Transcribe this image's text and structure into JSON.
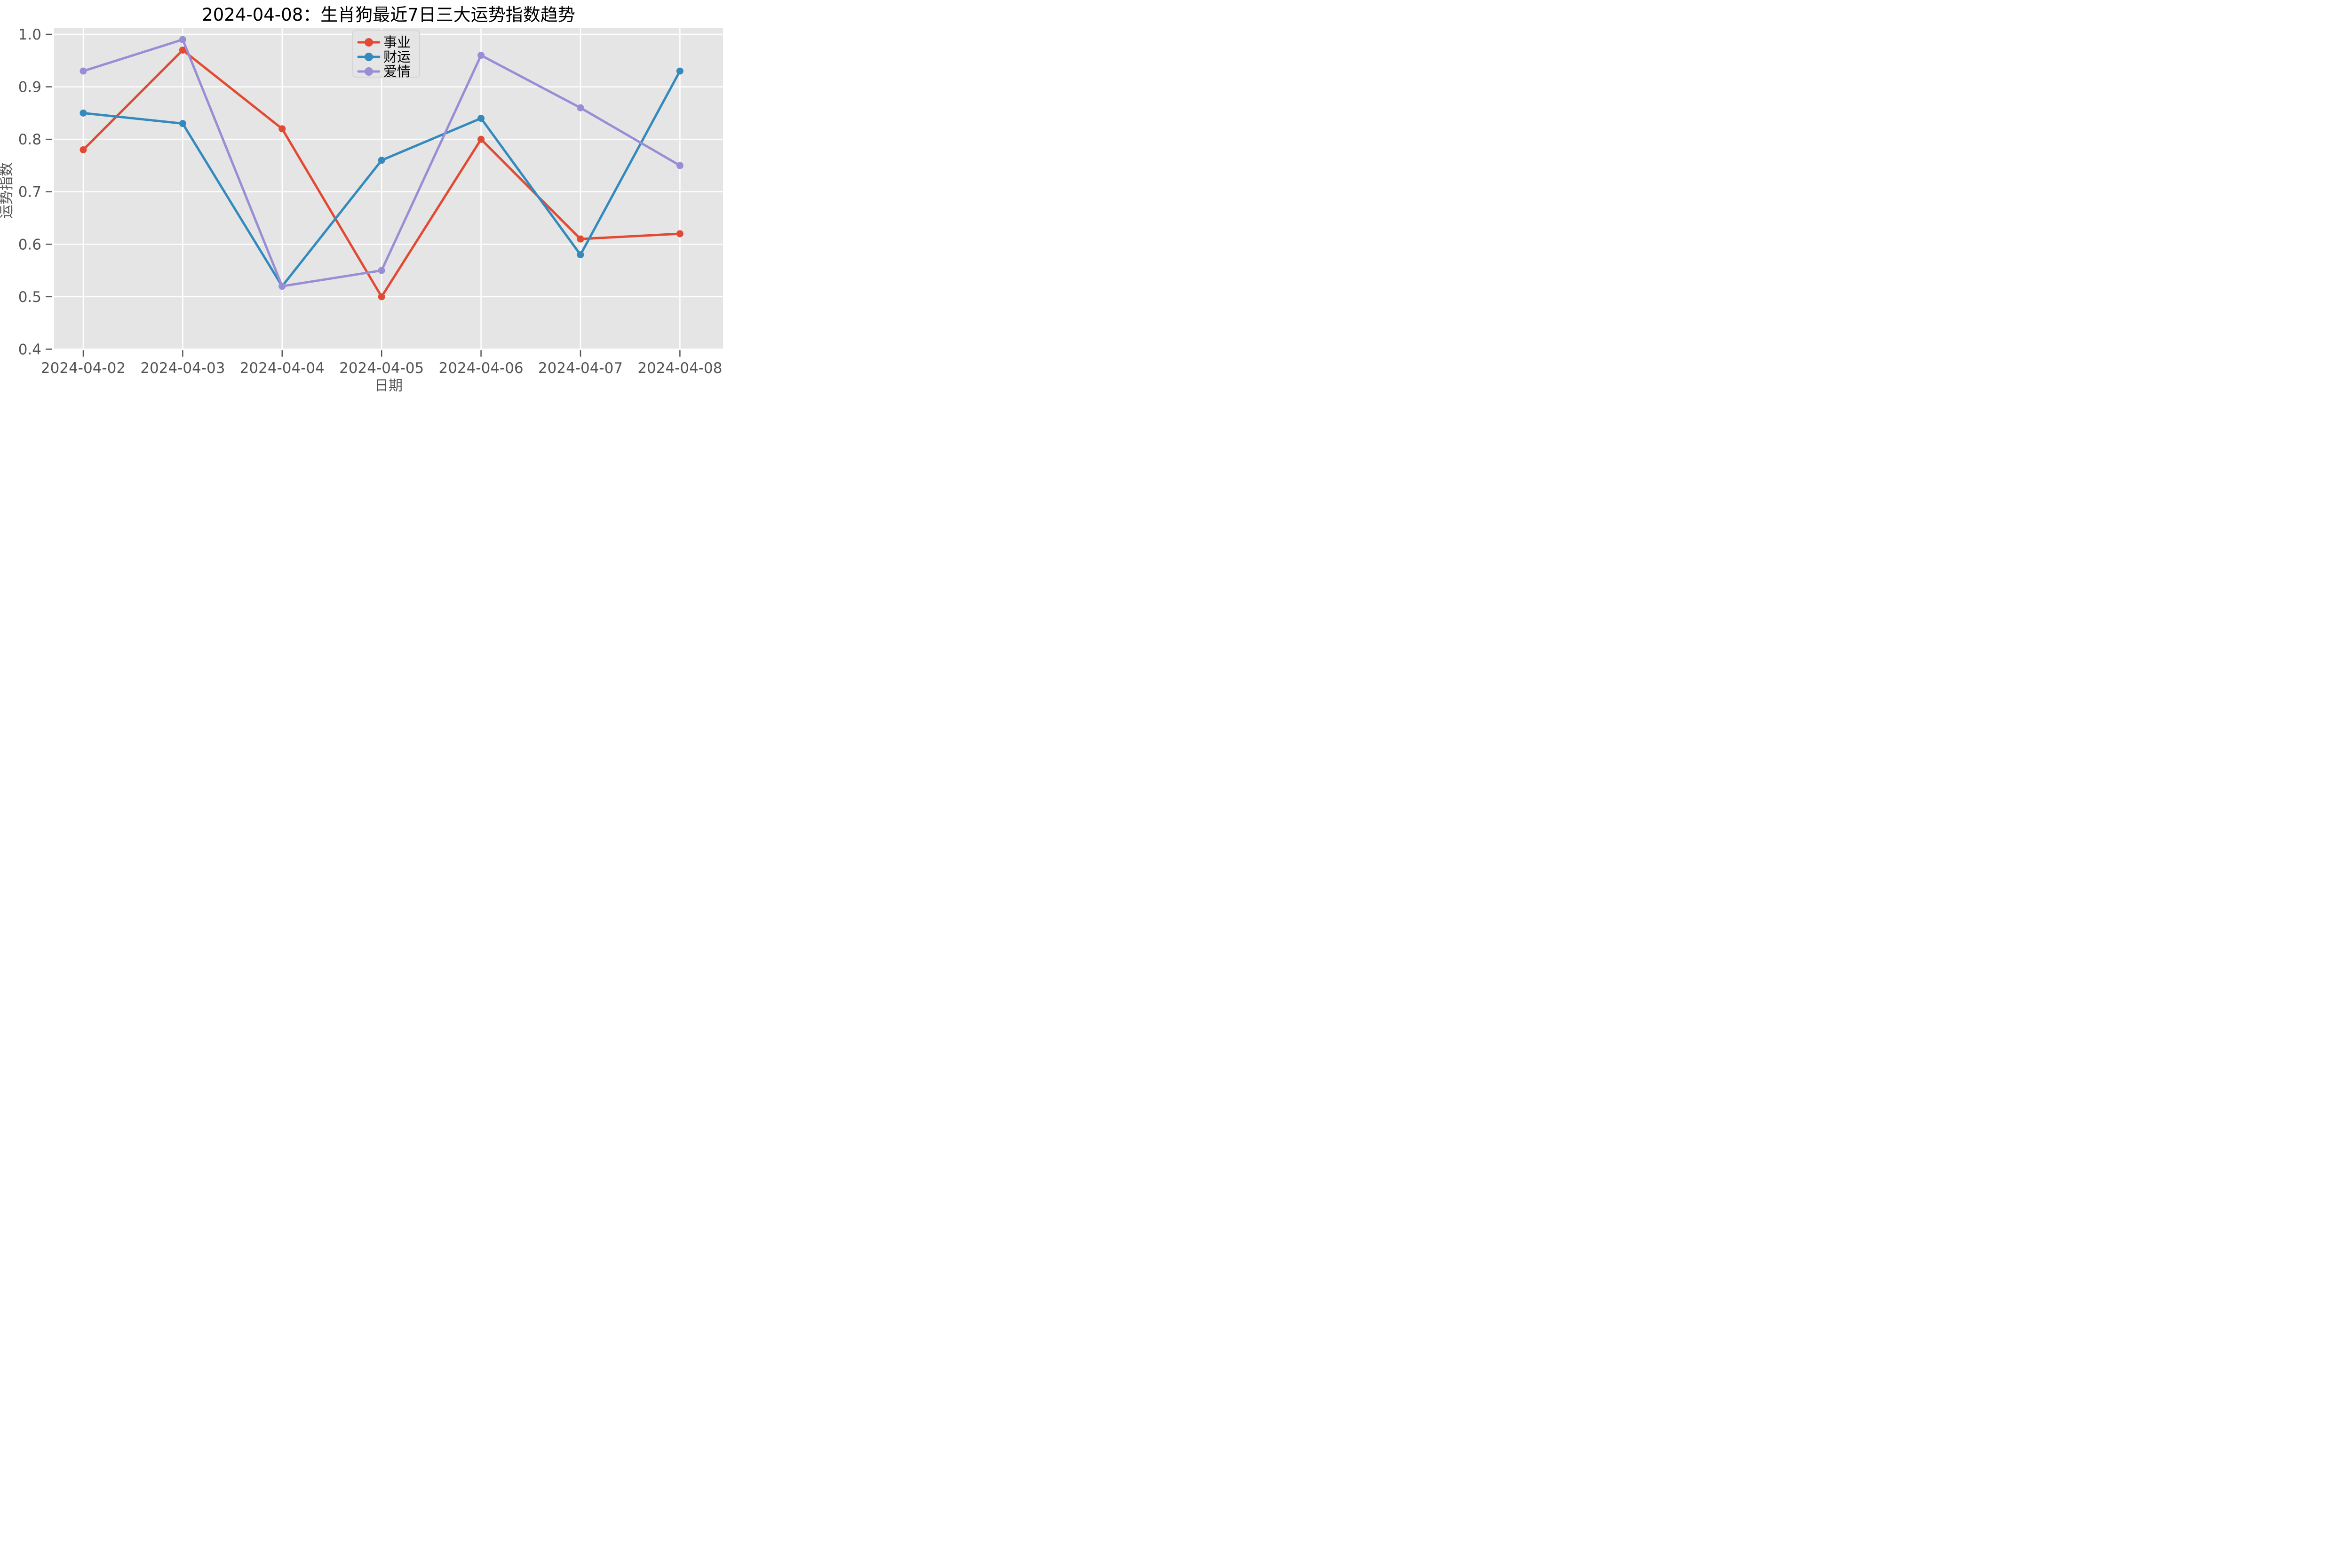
{
  "title": "2024-04-08：生肖狗最近7日三大运势指数趋势",
  "chart_data": {
    "type": "line",
    "title": "2024-04-08：生肖狗最近7日三大运势指数趋势",
    "xlabel": "日期",
    "ylabel": "运势指数",
    "ylim": [
      0.4,
      1.0
    ],
    "y_ticks": [
      "1.0",
      "0.9",
      "0.8",
      "0.7",
      "0.6",
      "0.5",
      "0.4"
    ],
    "categories": [
      "2024-04-02",
      "2024-04-03",
      "2024-04-04",
      "2024-04-05",
      "2024-04-06",
      "2024-04-07",
      "2024-04-08"
    ],
    "series": [
      {
        "key": "career",
        "name": "事业",
        "color": "#E24A33",
        "values": [
          0.78,
          0.97,
          0.82,
          0.5,
          0.8,
          0.61,
          0.62
        ]
      },
      {
        "key": "wealth",
        "name": "财运",
        "color": "#348ABD",
        "values": [
          0.85,
          0.83,
          0.52,
          0.76,
          0.84,
          0.58,
          0.93
        ]
      },
      {
        "key": "love",
        "name": "爱情",
        "color": "#988ED5",
        "values": [
          0.93,
          0.99,
          0.52,
          0.55,
          0.96,
          0.86,
          0.75
        ]
      }
    ],
    "legend_position": "upper center",
    "grid": true,
    "style": {
      "plot_bg": "#E5E5E5",
      "grid_color": "#FFFFFF",
      "tick_color": "#555555",
      "title_color": "#000000",
      "legend_border": "#D4D4D4"
    }
  }
}
